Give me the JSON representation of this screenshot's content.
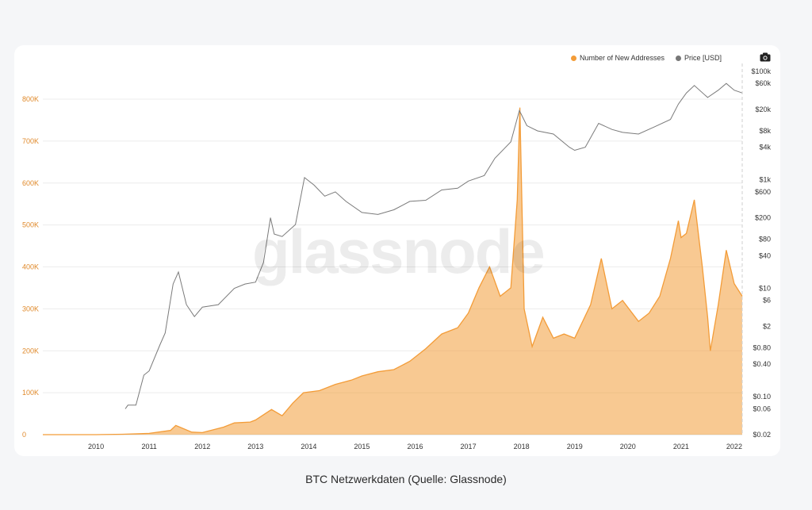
{
  "caption": "BTC Netzwerkdaten (Quelle: Glassnode)",
  "watermark": "glassnode",
  "legend": [
    {
      "label": "Number of New Addresses",
      "color": "#f39c38"
    },
    {
      "label": "Price [USD]",
      "color": "#777777"
    }
  ],
  "chart_data": {
    "type": "line",
    "grid": true,
    "legend_position": "top-right",
    "x_ticks": [
      "2010",
      "2011",
      "2012",
      "2013",
      "2014",
      "2015",
      "2016",
      "2017",
      "2018",
      "2019",
      "2020",
      "2021",
      "2022"
    ],
    "y_left_ticks": [
      "0",
      "100K",
      "200K",
      "300K",
      "400K",
      "500K",
      "600K",
      "700K",
      "800K"
    ],
    "y_left_range": [
      0,
      800000
    ],
    "y_right_ticks": [
      "$100k",
      "$60k",
      "$20k",
      "$8k",
      "$4k",
      "$1k",
      "$600",
      "$200",
      "$80",
      "$40",
      "$10",
      "$6",
      "$2",
      "$0.80",
      "$0.40",
      "$0.10",
      "$0.06",
      "$0.02"
    ],
    "y_right_scale": "log",
    "y_right_range": [
      0.02,
      100000
    ],
    "series": [
      {
        "name": "Number of New Addresses",
        "axis": "left",
        "color": "#f39c38",
        "x": [
          2009.0,
          2010.0,
          2010.5,
          2011.0,
          2011.4,
          2011.5,
          2011.8,
          2012.0,
          2012.4,
          2012.6,
          2012.9,
          2013.0,
          2013.3,
          2013.5,
          2013.7,
          2013.9,
          2014.2,
          2014.5,
          2014.8,
          2015.0,
          2015.3,
          2015.6,
          2015.9,
          2016.2,
          2016.5,
          2016.8,
          2017.0,
          2017.2,
          2017.4,
          2017.6,
          2017.8,
          2017.92,
          2017.97,
          2018.05,
          2018.2,
          2018.4,
          2018.6,
          2018.8,
          2019.0,
          2019.3,
          2019.5,
          2019.7,
          2019.9,
          2020.2,
          2020.4,
          2020.6,
          2020.8,
          2020.95,
          2021.0,
          2021.1,
          2021.25,
          2021.4,
          2021.5,
          2021.55,
          2021.7,
          2021.85,
          2022.0,
          2022.15
        ],
        "y": [
          0,
          0,
          1000,
          3000,
          10000,
          22000,
          6000,
          5000,
          18000,
          28000,
          30000,
          35000,
          60000,
          45000,
          75000,
          100000,
          105000,
          120000,
          130000,
          140000,
          150000,
          155000,
          175000,
          205000,
          240000,
          255000,
          290000,
          350000,
          400000,
          330000,
          350000,
          560000,
          780000,
          300000,
          210000,
          280000,
          230000,
          240000,
          230000,
          310000,
          420000,
          300000,
          320000,
          270000,
          290000,
          330000,
          420000,
          510000,
          470000,
          480000,
          560000,
          400000,
          280000,
          200000,
          310000,
          440000,
          360000,
          330000
        ]
      },
      {
        "name": "Price [USD]",
        "axis": "right",
        "color": "#7a7a7a",
        "x": [
          2010.55,
          2010.6,
          2010.75,
          2010.9,
          2011.0,
          2011.2,
          2011.3,
          2011.45,
          2011.55,
          2011.7,
          2011.85,
          2012.0,
          2012.3,
          2012.6,
          2012.8,
          2013.0,
          2013.15,
          2013.28,
          2013.35,
          2013.5,
          2013.75,
          2013.92,
          2014.1,
          2014.3,
          2014.5,
          2014.7,
          2015.0,
          2015.3,
          2015.6,
          2015.9,
          2016.2,
          2016.5,
          2016.8,
          2017.0,
          2017.3,
          2017.5,
          2017.8,
          2017.96,
          2018.1,
          2018.3,
          2018.6,
          2018.9,
          2019.0,
          2019.2,
          2019.45,
          2019.7,
          2019.9,
          2020.2,
          2020.5,
          2020.8,
          2020.95,
          2021.1,
          2021.25,
          2021.5,
          2021.7,
          2021.85,
          2022.0,
          2022.15
        ],
        "y": [
          0.06,
          0.07,
          0.07,
          0.25,
          0.3,
          0.9,
          1.5,
          12,
          20,
          5,
          3,
          4.5,
          5,
          10,
          12,
          13,
          30,
          200,
          100,
          90,
          150,
          1100,
          800,
          500,
          600,
          400,
          250,
          230,
          280,
          400,
          420,
          650,
          700,
          950,
          1200,
          2500,
          5000,
          19000,
          10000,
          8000,
          7000,
          4000,
          3500,
          4000,
          11000,
          8500,
          7500,
          7000,
          9500,
          13000,
          25000,
          40000,
          55000,
          33000,
          45000,
          60000,
          45000,
          40000
        ]
      }
    ]
  }
}
